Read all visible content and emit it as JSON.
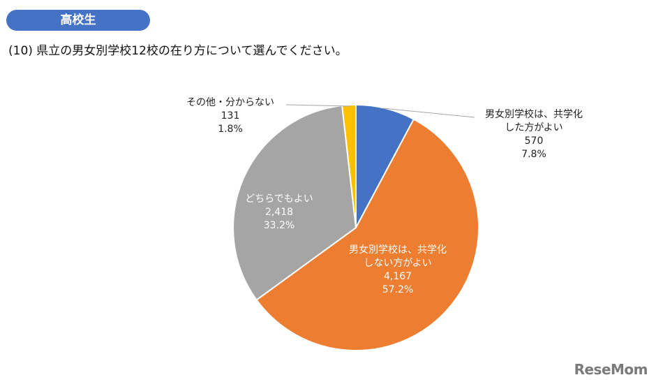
{
  "header": {
    "badge": "高校生",
    "question": "(10) 県立の男女別学校12校の在り方について選んでください。"
  },
  "chart_data": {
    "type": "pie",
    "slices": [
      {
        "label_line1": "男女別学校は、共学化",
        "label_line2": "した方がよい",
        "count": "570",
        "percent": "7.8%",
        "value": 7.8,
        "color": "#4472c4"
      },
      {
        "label_line1": "男女別学校は、共学化",
        "label_line2": "しない方がよい",
        "count": "4,167",
        "percent": "57.2%",
        "value": 57.2,
        "color": "#ed7d31"
      },
      {
        "label_line1": "どちらでもよい",
        "label_line2": "",
        "count": "2,418",
        "percent": "33.2%",
        "value": 33.2,
        "color": "#a5a5a5"
      },
      {
        "label_line1": "その他・分からない",
        "label_line2": "",
        "count": "131",
        "percent": "1.8%",
        "value": 1.8,
        "color": "#ffc000"
      }
    ]
  },
  "logo": "ReseMom"
}
